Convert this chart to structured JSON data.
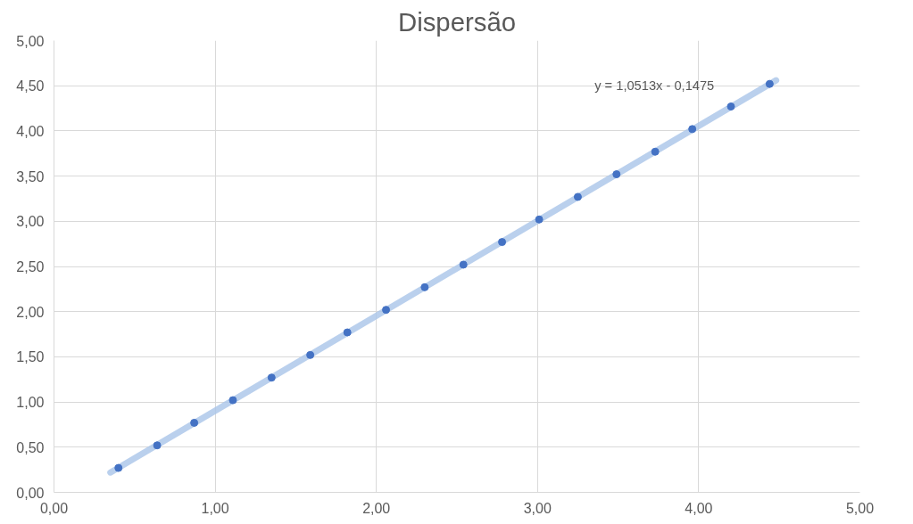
{
  "chart_data": {
    "type": "scatter",
    "title": "Dispersão",
    "series": [
      {
        "color": "#4472c4",
        "marker": "circle",
        "x": [
          0.4,
          0.64,
          0.87,
          1.11,
          1.35,
          1.59,
          1.82,
          2.06,
          2.3,
          2.54,
          2.78,
          3.01,
          3.25,
          3.49,
          3.73,
          3.96,
          4.2,
          4.44
        ],
        "values": [
          0.27,
          0.52,
          0.77,
          1.02,
          1.27,
          1.52,
          1.77,
          2.02,
          2.27,
          2.52,
          2.77,
          3.02,
          3.27,
          3.52,
          3.77,
          4.02,
          4.27,
          4.52
        ]
      },
      {
        "type": "line",
        "color": "#a9c4e8",
        "marker": "none",
        "x": [
          0.35,
          4.48
        ],
        "values": [
          0.22,
          4.56
        ]
      }
    ],
    "annotations": [
      "y = 1,0513x - 0,1475"
    ],
    "xlim": [
      0,
      5
    ],
    "ylim": [
      0,
      5
    ],
    "xticks": [
      {
        "value": 0,
        "label": "0,00"
      },
      {
        "value": 1,
        "label": "1,00"
      },
      {
        "value": 2,
        "label": "2,00"
      },
      {
        "value": 3,
        "label": "3,00"
      },
      {
        "value": 4,
        "label": "4,00"
      },
      {
        "value": 5,
        "label": "5,00"
      }
    ],
    "yticks": [
      {
        "value": 0,
        "label": "0,00"
      },
      {
        "value": 0.5,
        "label": "0,50"
      },
      {
        "value": 1,
        "label": "1,00"
      },
      {
        "value": 1.5,
        "label": "1,50"
      },
      {
        "value": 2,
        "label": "2,00"
      },
      {
        "value": 2.5,
        "label": "2,50"
      },
      {
        "value": 3,
        "label": "3,00"
      },
      {
        "value": 3.5,
        "label": "3,50"
      },
      {
        "value": 4,
        "label": "4,00"
      },
      {
        "value": 4.5,
        "label": "4,50"
      },
      {
        "value": 5,
        "label": "5,00"
      }
    ],
    "grid": true
  }
}
